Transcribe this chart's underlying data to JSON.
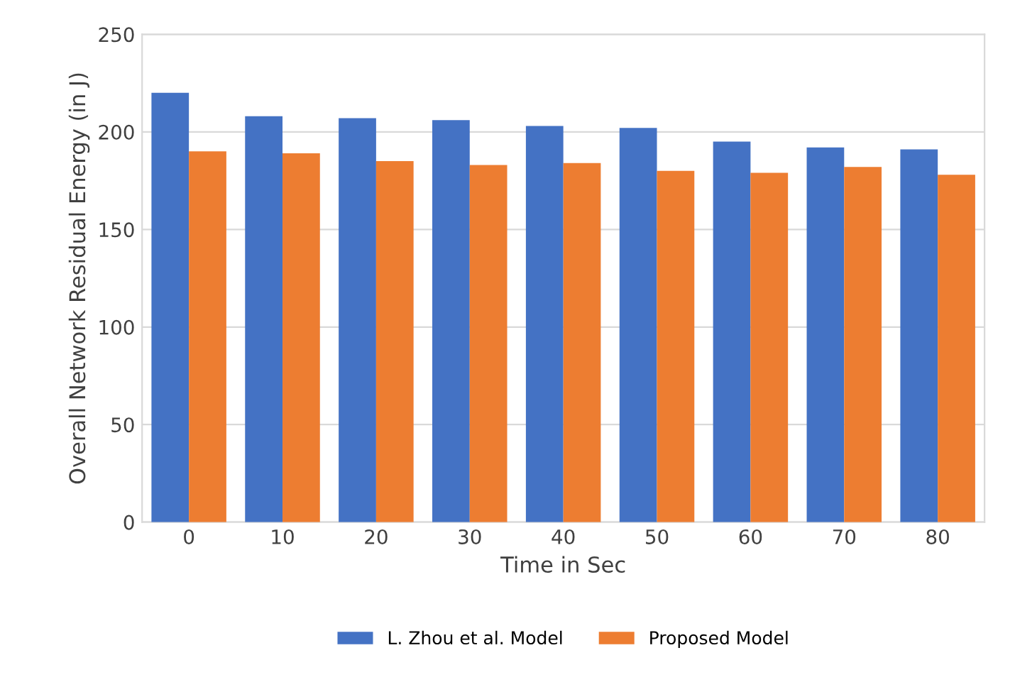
{
  "chart_data": {
    "type": "bar",
    "xlabel": "Time in Sec",
    "ylabel": "Overall Network Residual Energy (in J)",
    "categories": [
      "0",
      "10",
      "20",
      "30",
      "40",
      "50",
      "60",
      "70",
      "80"
    ],
    "series": [
      {
        "name": "L. Zhou et al. Model",
        "color": "#4472c4",
        "values": [
          220,
          208,
          207,
          206,
          203,
          202,
          195,
          192,
          191
        ]
      },
      {
        "name": "Proposed Model",
        "color": "#ed7d31",
        "values": [
          190,
          189,
          185,
          183,
          184,
          180,
          179,
          182,
          178
        ]
      }
    ],
    "ylim": [
      0,
      250
    ],
    "yticks": [
      0,
      50,
      100,
      150,
      200,
      250
    ],
    "grid": "y",
    "legend": "bottom"
  }
}
